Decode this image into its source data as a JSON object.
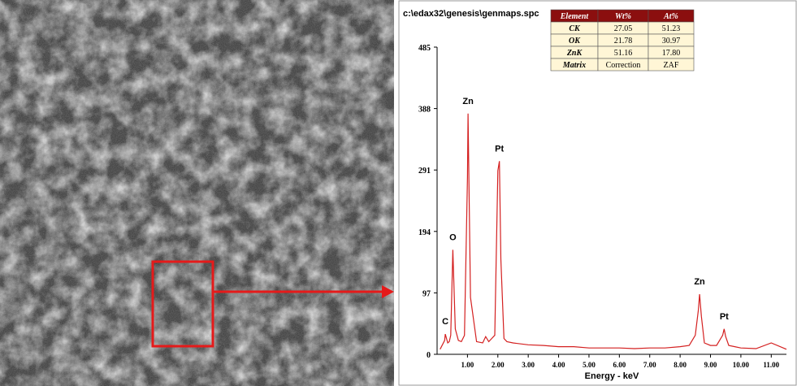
{
  "sem": {
    "bg_color": "#6d6d6d",
    "highlight_color": "#e51a1a",
    "arrow_color": "#e51a1a"
  },
  "eds": {
    "filename": "c:\\edax32\\genesis\\genmaps.spc",
    "line_color": "#d42020",
    "table": {
      "headers": [
        "Element",
        "Wt%",
        "At%"
      ],
      "rows": [
        [
          "CK",
          "27.05",
          "51.23"
        ],
        [
          "OK",
          "21.78",
          "30.97"
        ],
        [
          "ZnK",
          "51.16",
          "17.80"
        ],
        [
          "Matrix",
          "Correction",
          "ZAF"
        ]
      ],
      "header_bg": "#8b0f0f",
      "body_bg": "#fff6d6"
    },
    "chart_data": {
      "type": "line",
      "xlabel": "Energy - keV",
      "ylabel": "",
      "xlim": [
        0,
        11.5
      ],
      "ylim": [
        0,
        485
      ],
      "x_ticks": [
        "1.00",
        "2.00",
        "3.00",
        "4.00",
        "5.00",
        "6.00",
        "7.00",
        "8.00",
        "9.00",
        "10.00",
        "11.00"
      ],
      "y_ticks": [
        "0",
        "97",
        "194",
        "291",
        "388",
        "485"
      ],
      "series": [
        {
          "x": [
            0.1,
            0.25,
            0.27,
            0.35,
            0.4,
            0.45,
            0.52,
            0.6,
            0.7,
            0.8,
            0.9,
            1.0,
            1.02,
            1.1,
            1.3,
            1.5,
            1.6,
            1.7,
            1.8,
            1.9,
            2.0,
            2.05,
            2.1,
            2.2,
            2.3,
            2.5,
            3.0,
            3.5,
            4.0,
            4.5,
            5.0,
            5.5,
            6.0,
            6.5,
            7.0,
            7.5,
            8.0,
            8.3,
            8.5,
            8.6,
            8.64,
            8.7,
            8.8,
            9.0,
            9.2,
            9.4,
            9.45,
            9.5,
            9.6,
            9.8,
            10.0,
            10.5,
            11.0,
            11.5
          ],
          "y": [
            8,
            22,
            32,
            18,
            20,
            30,
            165,
            40,
            22,
            20,
            30,
            280,
            380,
            90,
            20,
            18,
            28,
            20,
            25,
            30,
            290,
            305,
            150,
            25,
            20,
            18,
            15,
            14,
            12,
            12,
            10,
            10,
            10,
            9,
            10,
            10,
            12,
            14,
            30,
            70,
            95,
            60,
            18,
            14,
            14,
            30,
            40,
            28,
            14,
            12,
            10,
            9,
            18,
            8
          ]
        }
      ],
      "annotations": [
        {
          "label": "C",
          "x": 0.27,
          "y": 32
        },
        {
          "label": "O",
          "x": 0.52,
          "y": 165
        },
        {
          "label": "Zn",
          "x": 1.02,
          "y": 380
        },
        {
          "label": "Pt",
          "x": 2.05,
          "y": 305
        },
        {
          "label": "Zn",
          "x": 8.64,
          "y": 95
        },
        {
          "label": "Pt",
          "x": 9.45,
          "y": 40
        }
      ]
    }
  }
}
